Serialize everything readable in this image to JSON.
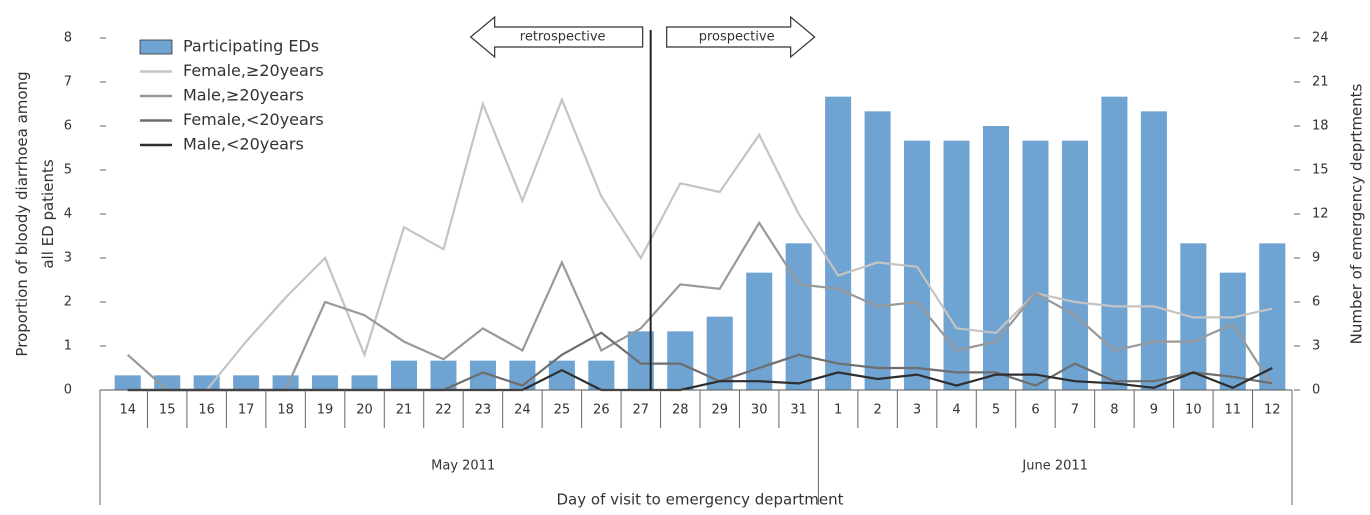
{
  "chart_data": {
    "type": "combo",
    "x_title": "Day of visit to emergency department",
    "y_title": "Proportion of bloody diarrhoea among all ED patients",
    "y2_title": "Number of emergency deprtments",
    "categories": [
      "14",
      "15",
      "16",
      "17",
      "18",
      "19",
      "20",
      "21",
      "22",
      "23",
      "24",
      "25",
      "26",
      "27",
      "28",
      "29",
      "30",
      "31",
      "1",
      "2",
      "3",
      "4",
      "5",
      "6",
      "7",
      "8",
      "9",
      "10",
      "11",
      "12"
    ],
    "x_groups": [
      "May 2011",
      "June 2011"
    ],
    "annotations": [
      "retrospective",
      "prospective"
    ],
    "ylim": [
      0,
      8
    ],
    "yticks": [
      0,
      1,
      2,
      3,
      4,
      5,
      6,
      7,
      8
    ],
    "y2lim": [
      0,
      24
    ],
    "y2ticks": [
      0,
      3,
      6,
      9,
      12,
      15,
      18,
      21,
      24
    ],
    "series": [
      {
        "name": "Participating EDs",
        "type": "bar",
        "axis": "y2",
        "color": "#6fa3d1",
        "values": [
          1,
          1,
          1,
          1,
          1,
          1,
          1,
          2,
          2,
          2,
          2,
          2,
          2,
          4,
          4,
          5,
          8,
          10,
          20,
          19,
          17,
          17,
          18,
          17,
          17,
          20,
          19,
          10,
          8,
          10
        ]
      },
      {
        "name": "Female,≥20years",
        "type": "line",
        "color": "#c4c4c4",
        "values": [
          0,
          0,
          0,
          1.1,
          2.1,
          3.0,
          0.8,
          3.7,
          3.2,
          6.5,
          4.3,
          6.6,
          4.4,
          3.0,
          4.7,
          4.5,
          5.8,
          4.0,
          2.6,
          2.9,
          2.8,
          1.4,
          1.3,
          2.2,
          2.0,
          1.9,
          1.9,
          1.65,
          1.65,
          1.85
        ]
      },
      {
        "name": "Male,≥20years",
        "type": "line",
        "color": "#999999",
        "values": [
          0.8,
          0,
          0,
          0,
          0,
          2.0,
          1.7,
          1.1,
          0.7,
          1.4,
          0.9,
          2.9,
          0.9,
          1.4,
          2.4,
          2.3,
          3.8,
          2.4,
          2.3,
          1.9,
          2.0,
          0.9,
          1.1,
          2.2,
          1.7,
          0.9,
          1.1,
          1.1,
          1.5,
          0.1
        ]
      },
      {
        "name": "Female,<20years",
        "type": "line",
        "color": "#6e6e6e",
        "values": [
          0,
          0,
          0,
          0,
          0,
          0,
          0,
          0,
          0,
          0.4,
          0.1,
          0.8,
          1.3,
          0.6,
          0.6,
          0.2,
          0.5,
          0.8,
          0.6,
          0.5,
          0.5,
          0.4,
          0.4,
          0.1,
          0.6,
          0.2,
          0.2,
          0.4,
          0.3,
          0.15
        ]
      },
      {
        "name": "Male,<20years",
        "type": "line",
        "color": "#2e2e2e",
        "values": [
          0,
          0,
          0,
          0,
          0,
          0,
          0,
          0,
          0,
          0,
          0,
          0.45,
          0,
          0,
          0,
          0.2,
          0.2,
          0.15,
          0.4,
          0.25,
          0.35,
          0.1,
          0.35,
          0.35,
          0.2,
          0.15,
          0.05,
          0.4,
          0.05,
          0.5
        ]
      }
    ]
  }
}
